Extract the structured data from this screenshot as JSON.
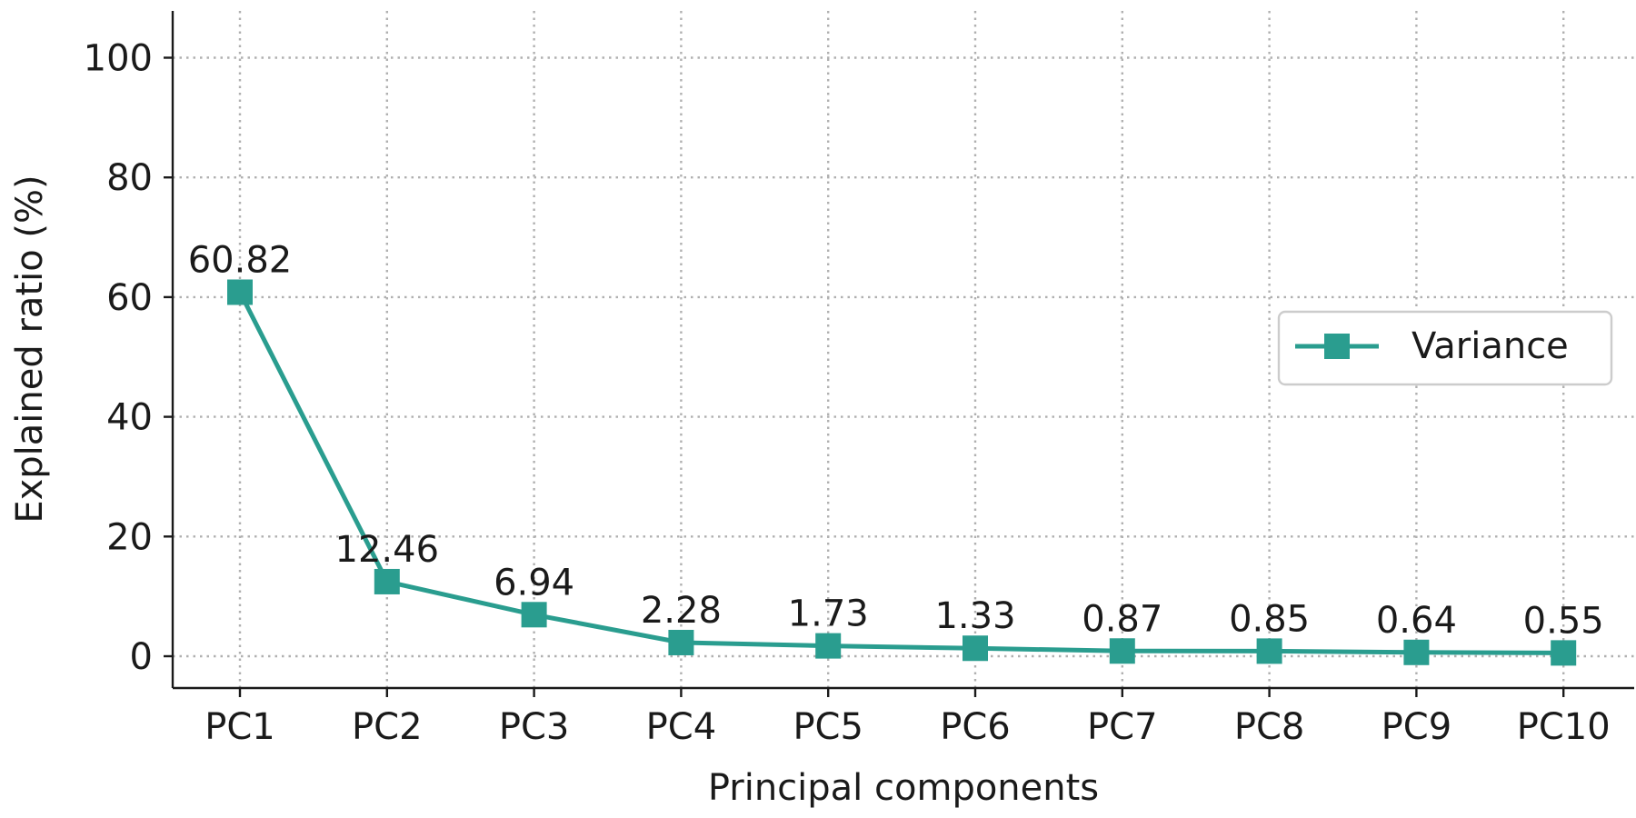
{
  "chart_data": {
    "type": "line",
    "categories": [
      "PC1",
      "PC2",
      "PC3",
      "PC4",
      "PC5",
      "PC6",
      "PC7",
      "PC8",
      "PC9",
      "PC10"
    ],
    "series": [
      {
        "name": "Variance",
        "values": [
          60.82,
          12.46,
          6.94,
          2.28,
          1.73,
          1.33,
          0.87,
          0.85,
          0.64,
          0.55
        ],
        "value_labels": [
          "60.82",
          "12.46",
          "6.94",
          "2.28",
          "1.73",
          "1.33",
          "0.87",
          "0.85",
          "0.64",
          "0.55"
        ],
        "color": "#2a9d8f",
        "marker": "square"
      }
    ],
    "xlabel": "Principal components",
    "ylabel": "Explained ratio (%)",
    "ylim": [
      -5,
      107
    ],
    "yticks": [
      "0",
      "20",
      "40",
      "60",
      "80",
      "100"
    ],
    "ytick_values": [
      0,
      20,
      40,
      60,
      80,
      100
    ],
    "grid": true,
    "legend_position": "center-right"
  }
}
